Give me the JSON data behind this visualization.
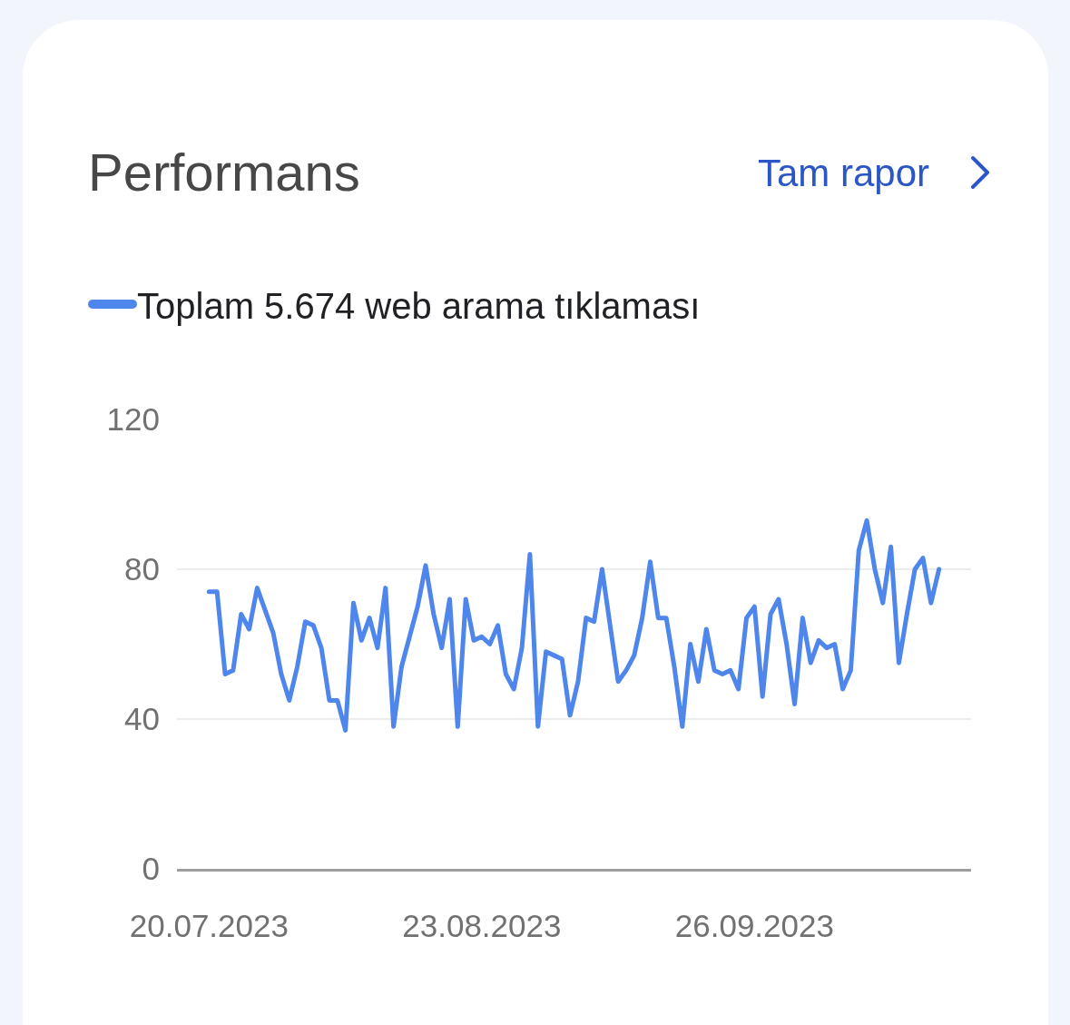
{
  "chart_data": {
    "type": "line",
    "title": "Performans",
    "annotations": [
      "Tam rapor"
    ],
    "x": [
      "2023-07-20",
      "2023-07-21",
      "2023-07-22",
      "2023-07-23",
      "2023-07-24",
      "2023-07-25",
      "2023-07-26",
      "2023-07-27",
      "2023-07-28",
      "2023-07-29",
      "2023-07-30",
      "2023-07-31",
      "2023-08-01",
      "2023-08-02",
      "2023-08-03",
      "2023-08-04",
      "2023-08-05",
      "2023-08-06",
      "2023-08-07",
      "2023-08-08",
      "2023-08-09",
      "2023-08-10",
      "2023-08-11",
      "2023-08-12",
      "2023-08-13",
      "2023-08-14",
      "2023-08-15",
      "2023-08-16",
      "2023-08-17",
      "2023-08-18",
      "2023-08-19",
      "2023-08-20",
      "2023-08-21",
      "2023-08-22",
      "2023-08-23",
      "2023-08-24",
      "2023-08-25",
      "2023-08-26",
      "2023-08-27",
      "2023-08-28",
      "2023-08-29",
      "2023-08-30",
      "2023-08-31",
      "2023-09-01",
      "2023-09-02",
      "2023-09-03",
      "2023-09-04",
      "2023-09-05",
      "2023-09-06",
      "2023-09-07",
      "2023-09-08",
      "2023-09-09",
      "2023-09-10",
      "2023-09-11",
      "2023-09-12",
      "2023-09-13",
      "2023-09-14",
      "2023-09-15",
      "2023-09-16",
      "2023-09-17",
      "2023-09-18",
      "2023-09-19",
      "2023-09-20",
      "2023-09-21",
      "2023-09-22",
      "2023-09-23",
      "2023-09-24",
      "2023-09-25",
      "2023-09-26",
      "2023-09-27",
      "2023-09-28",
      "2023-09-29",
      "2023-09-30",
      "2023-10-01",
      "2023-10-02",
      "2023-10-03",
      "2023-10-04",
      "2023-10-05",
      "2023-10-06",
      "2023-10-07",
      "2023-10-08",
      "2023-10-09",
      "2023-10-10",
      "2023-10-11",
      "2023-10-12",
      "2023-10-13",
      "2023-10-14",
      "2023-10-15",
      "2023-10-16",
      "2023-10-17",
      "2023-10-18",
      "2023-10-19"
    ],
    "series": [
      {
        "name": "Toplam 5.674 web arama tıklaması",
        "color": "#4e86ec",
        "values": [
          74,
          74,
          52,
          53,
          68,
          64,
          75,
          69,
          63,
          52,
          45,
          54,
          66,
          65,
          59,
          45,
          45,
          37,
          71,
          61,
          67,
          59,
          75,
          38,
          54,
          62,
          70,
          81,
          68,
          59,
          72,
          38,
          72,
          61,
          62,
          60,
          65,
          52,
          48,
          59,
          84,
          38,
          58,
          57,
          56,
          41,
          50,
          67,
          66,
          80,
          65,
          50,
          53,
          57,
          67,
          82,
          67,
          67,
          54,
          38,
          60,
          50,
          64,
          53,
          52,
          53,
          48,
          67,
          70,
          46,
          68,
          72,
          60,
          44,
          67,
          55,
          61,
          59,
          60,
          48,
          53,
          85,
          93,
          80,
          71,
          86,
          55,
          68,
          80,
          83,
          71,
          80
        ]
      }
    ],
    "xlim": [
      "2023-07-16",
      "2023-10-23"
    ],
    "xticks": [
      {
        "value": "2023-07-20",
        "label": "20.07.2023"
      },
      {
        "value": "2023-08-23",
        "label": "23.08.2023"
      },
      {
        "value": "2023-09-26",
        "label": "26.09.2023"
      }
    ],
    "ylim": [
      0,
      120
    ],
    "yticks": [
      0,
      40,
      80,
      120
    ],
    "grid": "y",
    "legend": "top left",
    "marker": "none",
    "line_style": "solid"
  }
}
